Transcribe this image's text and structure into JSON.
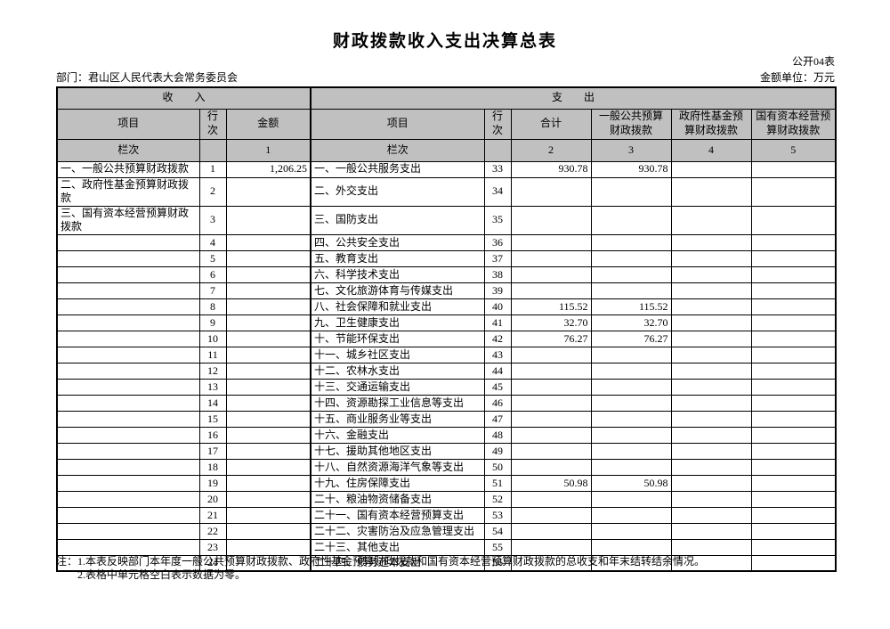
{
  "title": "财政拨款收入支出决算总表",
  "table_code": "公开04表",
  "department_label": "部门：君山区人民代表大会常务委员会",
  "unit_label": "金额单位：万元",
  "header": {
    "income_section": "收　　入",
    "expense_section": "支　　出",
    "item": "项目",
    "line_no": "行次",
    "amount": "金额",
    "total": "合计",
    "col_general_budget": "一般公共预算财政拨款",
    "col_gov_fund": "政府性基金预算财政拨款",
    "col_state_capital": "国有资本经营预算财政拨款",
    "column_index_label": "栏次",
    "col_num_1": "1",
    "col_num_2": "2",
    "col_num_3": "3",
    "col_num_4": "4",
    "col_num_5": "5"
  },
  "rows": [
    {
      "in_item": "一、一般公共预算财政拨款",
      "in_line": "1",
      "in_amount": "1,206.25",
      "ex_item": "一、一般公共服务支出",
      "ex_line": "33",
      "ex_total": "930.78",
      "ex_general": "930.78",
      "ex_fund": "",
      "ex_state": ""
    },
    {
      "in_item": "二、政府性基金预算财政拨款",
      "in_line": "2",
      "in_amount": "",
      "ex_item": "二、外交支出",
      "ex_line": "34",
      "ex_total": "",
      "ex_general": "",
      "ex_fund": "",
      "ex_state": ""
    },
    {
      "in_item": "三、国有资本经营预算财政拨款",
      "in_line": "3",
      "in_amount": "",
      "ex_item": "三、国防支出",
      "ex_line": "35",
      "ex_total": "",
      "ex_general": "",
      "ex_fund": "",
      "ex_state": ""
    },
    {
      "in_item": "",
      "in_line": "4",
      "in_amount": "",
      "ex_item": "四、公共安全支出",
      "ex_line": "36",
      "ex_total": "",
      "ex_general": "",
      "ex_fund": "",
      "ex_state": ""
    },
    {
      "in_item": "",
      "in_line": "5",
      "in_amount": "",
      "ex_item": "五、教育支出",
      "ex_line": "37",
      "ex_total": "",
      "ex_general": "",
      "ex_fund": "",
      "ex_state": ""
    },
    {
      "in_item": "",
      "in_line": "6",
      "in_amount": "",
      "ex_item": "六、科学技术支出",
      "ex_line": "38",
      "ex_total": "",
      "ex_general": "",
      "ex_fund": "",
      "ex_state": ""
    },
    {
      "in_item": "",
      "in_line": "7",
      "in_amount": "",
      "ex_item": "七、文化旅游体育与传媒支出",
      "ex_line": "39",
      "ex_total": "",
      "ex_general": "",
      "ex_fund": "",
      "ex_state": ""
    },
    {
      "in_item": "",
      "in_line": "8",
      "in_amount": "",
      "ex_item": "八、社会保障和就业支出",
      "ex_line": "40",
      "ex_total": "115.52",
      "ex_general": "115.52",
      "ex_fund": "",
      "ex_state": ""
    },
    {
      "in_item": "",
      "in_line": "9",
      "in_amount": "",
      "ex_item": "九、卫生健康支出",
      "ex_line": "41",
      "ex_total": "32.70",
      "ex_general": "32.70",
      "ex_fund": "",
      "ex_state": ""
    },
    {
      "in_item": "",
      "in_line": "10",
      "in_amount": "",
      "ex_item": "十、节能环保支出",
      "ex_line": "42",
      "ex_total": "76.27",
      "ex_general": "76.27",
      "ex_fund": "",
      "ex_state": ""
    },
    {
      "in_item": "",
      "in_line": "11",
      "in_amount": "",
      "ex_item": "十一、城乡社区支出",
      "ex_line": "43",
      "ex_total": "",
      "ex_general": "",
      "ex_fund": "",
      "ex_state": ""
    },
    {
      "in_item": "",
      "in_line": "12",
      "in_amount": "",
      "ex_item": "十二、农林水支出",
      "ex_line": "44",
      "ex_total": "",
      "ex_general": "",
      "ex_fund": "",
      "ex_state": ""
    },
    {
      "in_item": "",
      "in_line": "13",
      "in_amount": "",
      "ex_item": "十三、交通运输支出",
      "ex_line": "45",
      "ex_total": "",
      "ex_general": "",
      "ex_fund": "",
      "ex_state": ""
    },
    {
      "in_item": "",
      "in_line": "14",
      "in_amount": "",
      "ex_item": "十四、资源勘探工业信息等支出",
      "ex_line": "46",
      "ex_total": "",
      "ex_general": "",
      "ex_fund": "",
      "ex_state": ""
    },
    {
      "in_item": "",
      "in_line": "15",
      "in_amount": "",
      "ex_item": "十五、商业服务业等支出",
      "ex_line": "47",
      "ex_total": "",
      "ex_general": "",
      "ex_fund": "",
      "ex_state": ""
    },
    {
      "in_item": "",
      "in_line": "16",
      "in_amount": "",
      "ex_item": "十六、金融支出",
      "ex_line": "48",
      "ex_total": "",
      "ex_general": "",
      "ex_fund": "",
      "ex_state": ""
    },
    {
      "in_item": "",
      "in_line": "17",
      "in_amount": "",
      "ex_item": "十七、援助其他地区支出",
      "ex_line": "49",
      "ex_total": "",
      "ex_general": "",
      "ex_fund": "",
      "ex_state": ""
    },
    {
      "in_item": "",
      "in_line": "18",
      "in_amount": "",
      "ex_item": "十八、自然资源海洋气象等支出",
      "ex_line": "50",
      "ex_total": "",
      "ex_general": "",
      "ex_fund": "",
      "ex_state": ""
    },
    {
      "in_item": "",
      "in_line": "19",
      "in_amount": "",
      "ex_item": "十九、住房保障支出",
      "ex_line": "51",
      "ex_total": "50.98",
      "ex_general": "50.98",
      "ex_fund": "",
      "ex_state": ""
    },
    {
      "in_item": "",
      "in_line": "20",
      "in_amount": "",
      "ex_item": "二十、粮油物资储备支出",
      "ex_line": "52",
      "ex_total": "",
      "ex_general": "",
      "ex_fund": "",
      "ex_state": ""
    },
    {
      "in_item": "",
      "in_line": "21",
      "in_amount": "",
      "ex_item": "二十一、国有资本经营预算支出",
      "ex_line": "53",
      "ex_total": "",
      "ex_general": "",
      "ex_fund": "",
      "ex_state": ""
    },
    {
      "in_item": "",
      "in_line": "22",
      "in_amount": "",
      "ex_item": "二十二、灾害防治及应急管理支出",
      "ex_line": "54",
      "ex_total": "",
      "ex_general": "",
      "ex_fund": "",
      "ex_state": ""
    },
    {
      "in_item": "",
      "in_line": "23",
      "in_amount": "",
      "ex_item": "二十三、其他支出",
      "ex_line": "55",
      "ex_total": "",
      "ex_general": "",
      "ex_fund": "",
      "ex_state": ""
    },
    {
      "in_item": "",
      "in_line": "24",
      "in_amount": "",
      "ex_item": "二十四、债务还本支出",
      "ex_line": "56",
      "ex_total": "",
      "ex_general": "",
      "ex_fund": "",
      "ex_state": ""
    }
  ],
  "notes": {
    "note1": "注：1.本表反映部门本年度一般公共预算财政拨款、政府性基金预算财政拨款和国有资本经营预算财政拨款的总收支和年末结转结余情况。",
    "note2": "2.表格中单元格空白表示数据为零。"
  }
}
